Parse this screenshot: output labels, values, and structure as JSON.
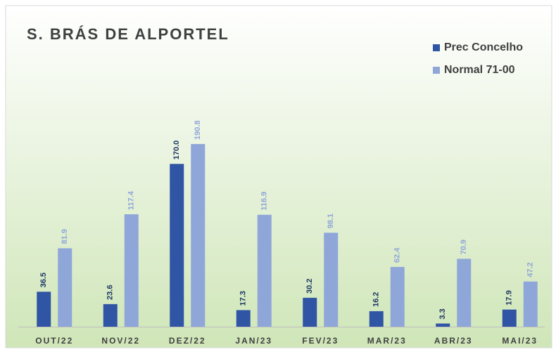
{
  "chart_data": {
    "type": "bar",
    "title": "S. BRÁS DE ALPORTEL",
    "categories": [
      "OUT/22",
      "NOV/22",
      "DEZ/22",
      "JAN/23",
      "FEV/23",
      "MAR/23",
      "ABR/23",
      "MAI/23"
    ],
    "series": [
      {
        "name": "Prec Concelho",
        "color": "#2f55a4",
        "values": [
          36.5,
          23.6,
          170,
          17.3,
          30.2,
          16.2,
          3.3,
          17.9
        ],
        "value_labels": [
          "36.5",
          "23.6",
          "170.0",
          "17.3",
          "30.2",
          "16.2",
          "3.3",
          "17.9"
        ]
      },
      {
        "name": "Normal 71-00",
        "color": "#8fa6d9",
        "values": [
          81.9,
          117.4,
          190.8,
          116.9,
          98.1,
          62.4,
          70.9,
          47.2
        ],
        "value_labels": [
          "81.9",
          "117.4",
          "190.8",
          "116.9",
          "98.1",
          "62.4",
          "70.9",
          "47.2"
        ]
      }
    ],
    "legend": "top-right"
  }
}
